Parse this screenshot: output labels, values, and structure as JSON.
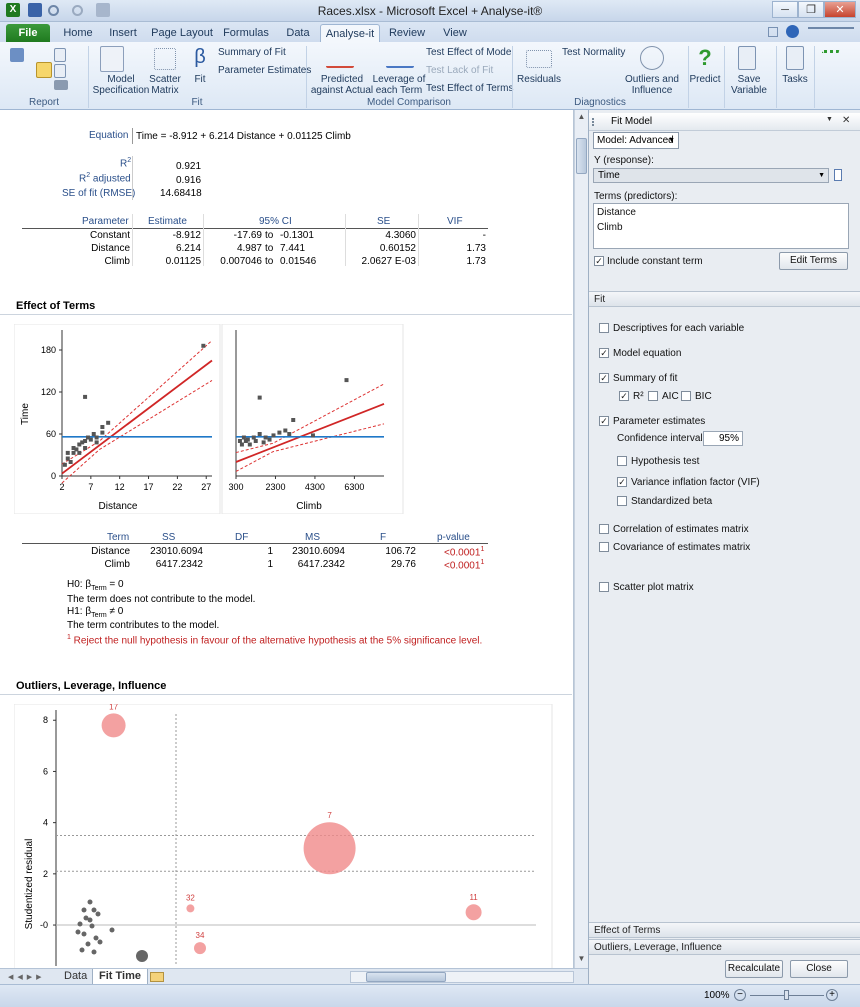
{
  "window": {
    "title": "Races.xlsx - Microsoft Excel + Analyse-it®",
    "minimize": "─",
    "restore": "❐",
    "close": "✕"
  },
  "tabs": [
    "File",
    "Home",
    "Insert",
    "Page Layout",
    "Formulas",
    "Data",
    "Analyse-it",
    "Review",
    "View"
  ],
  "ribbon": {
    "groups": {
      "report": "Report",
      "fit": "Fit",
      "model_comparison": "Model Comparison",
      "diagnostics": "Diagnostics"
    },
    "model_specification": [
      "Model",
      "Specification"
    ],
    "scatter_matrix": [
      "Scatter",
      "Matrix"
    ],
    "fit": "Fit",
    "summary_of_fit": "Summary of Fit",
    "parameter_estimates": "Parameter Estimates",
    "predicted_against_actual": [
      "Predicted",
      "against Actual"
    ],
    "leverage_of_each_term": [
      "Leverage of",
      "each Term"
    ],
    "test_effect_of_model": "Test Effect of Model",
    "test_lack_of_fit": "Test Lack of Fit",
    "test_effect_of_terms": "Test Effect of Terms",
    "residuals": "Residuals",
    "test_normality": "Test Normality",
    "outliers_and_influence": [
      "Outliers and",
      "Influence"
    ],
    "predict": "Predict",
    "save_variable": [
      "Save",
      "Variable"
    ],
    "tasks": "Tasks",
    "beta_glyph": "β",
    "predict_glyph": "?"
  },
  "report": {
    "equation_label": "Equation",
    "equation": "Time = -8.912 + 6.214 Distance + 0.01125 Climb",
    "r2_label": "R",
    "r2_sup": "2",
    "r2": "0.921",
    "r2adj_label_pre": "R",
    "r2adj_label_sup": "2",
    "r2adj_label_post": " adjusted",
    "r2adj": "0.916",
    "se_label": "SE of fit (RMSE)",
    "se": "14.68418",
    "param_headers": [
      "Parameter",
      "Estimate",
      "95% CI",
      "SE",
      "VIF"
    ],
    "params": [
      {
        "name": "Constant",
        "estimate": "-8.912",
        "ci_lo": "-17.69",
        "ci_to": "to",
        "ci_hi": "-0.1301",
        "se": "4.3060",
        "vif": "-"
      },
      {
        "name": "Distance",
        "estimate": "6.214",
        "ci_lo": "4.987",
        "ci_to": "to",
        "ci_hi": "7.441",
        "se": "0.60152",
        "vif": "1.73"
      },
      {
        "name": "Climb",
        "estimate": "0.01125",
        "ci_lo": "0.007046",
        "ci_to": "to",
        "ci_hi": "0.01546",
        "se": "2.0627 E-03",
        "vif": "1.73"
      }
    ],
    "effect_title": "Effect of Terms",
    "term_headers": [
      "Term",
      "SS",
      "DF",
      "MS",
      "F",
      "p-value"
    ],
    "terms": [
      {
        "name": "Distance",
        "ss": "23010.6094",
        "df": "1",
        "ms": "23010.6094",
        "f": "106.72",
        "p": "<0.0001",
        "sup": "1"
      },
      {
        "name": "Climb",
        "ss": "6417.2342",
        "df": "1",
        "ms": "6417.2342",
        "f": "29.76",
        "p": "<0.0001",
        "sup": "1"
      }
    ],
    "h0_pre": "H0: β",
    "h0_sub": "Term",
    "h0_post": " = 0",
    "h0_text": "The term does not contribute to the model.",
    "h1_pre": "H1: β",
    "h1_sub": "Term",
    "h1_post": " ≠ 0",
    "h1_text": "The term contributes to the model.",
    "footnote_sup": "1",
    "footnote": " Reject the null hypothesis in favour of the alternative hypothesis at the 5% significance level.",
    "outliers_title": "Outliers, Leverage, Influence"
  },
  "chart_data": [
    {
      "type": "scatter",
      "xlabel": "Distance",
      "ylabel": "Time",
      "xticks": [
        "2",
        "7",
        "12",
        "17",
        "22",
        "27"
      ],
      "yticks": [
        "0",
        "60",
        "120",
        "180"
      ],
      "xlim": [
        2,
        28
      ],
      "ylim": [
        0,
        200
      ],
      "points": [
        [
          2.5,
          16
        ],
        [
          3,
          25
        ],
        [
          3,
          33
        ],
        [
          3.5,
          20
        ],
        [
          4,
          33
        ],
        [
          4,
          40
        ],
        [
          4.5,
          38
        ],
        [
          5,
          33
        ],
        [
          5,
          45
        ],
        [
          5.5,
          48
        ],
        [
          6,
          50
        ],
        [
          6,
          40
        ],
        [
          6.5,
          55
        ],
        [
          7,
          52
        ],
        [
          7.5,
          60
        ],
        [
          8,
          48
        ],
        [
          8,
          55
        ],
        [
          9,
          62
        ],
        [
          9,
          70
        ],
        [
          10,
          76
        ],
        [
          6,
          113
        ],
        [
          26.5,
          186
        ]
      ],
      "fit_line": [
        [
          2,
          3.5
        ],
        [
          28,
          165
        ]
      ],
      "mean_line": 56
    },
    {
      "type": "scatter",
      "xlabel": "Climb",
      "xticks": [
        "300",
        "2300",
        "4300",
        "6300"
      ],
      "xlim": [
        300,
        7800
      ],
      "ylim": [
        0,
        200
      ],
      "points": [
        [
          500,
          50
        ],
        [
          600,
          45
        ],
        [
          700,
          55
        ],
        [
          800,
          50
        ],
        [
          900,
          52
        ],
        [
          1000,
          45
        ],
        [
          1200,
          55
        ],
        [
          1300,
          50
        ],
        [
          1500,
          60
        ],
        [
          1700,
          48
        ],
        [
          1800,
          55
        ],
        [
          2000,
          52
        ],
        [
          2200,
          58
        ],
        [
          2500,
          62
        ],
        [
          2800,
          65
        ],
        [
          3000,
          60
        ],
        [
          3200,
          80
        ],
        [
          4200,
          58
        ],
        [
          5900,
          137
        ],
        [
          1500,
          112
        ]
      ],
      "fit_line": [
        [
          300,
          20
        ],
        [
          7800,
          103
        ]
      ],
      "mean_line": 56
    },
    {
      "type": "bubble",
      "ylabel": "Studentized residual",
      "yticks": [
        "-0",
        "2",
        "4",
        "6",
        "8"
      ],
      "ylim": [
        -1.6,
        8.4
      ],
      "labels": [
        "17",
        "32",
        "34",
        "7",
        "11"
      ],
      "points": [
        {
          "label": "17",
          "x": 0.12,
          "y": 7.8,
          "r": 12,
          "highlight": true
        },
        {
          "label": "32",
          "x": 0.28,
          "y": 0.65,
          "r": 4,
          "highlight": true
        },
        {
          "label": "34",
          "x": 0.3,
          "y": -0.9,
          "r": 6,
          "highlight": true
        },
        {
          "label": "7",
          "x": 0.57,
          "y": 3,
          "r": 26,
          "highlight": true
        },
        {
          "label": "11",
          "x": 0.87,
          "y": 0.5,
          "r": 8,
          "highlight": true
        }
      ],
      "hlines": [
        3.5,
        2.1,
        0
      ]
    }
  ],
  "sheet_tabs": [
    "Data",
    "Fit Time"
  ],
  "status": {
    "zoom": "100%",
    "zoom_minus": "−",
    "zoom_plus": "+"
  },
  "panel": {
    "title": "Fit Model",
    "close_glyph": "✕",
    "collapse_glyph": "▼",
    "model_select": "Model: Advanced",
    "y_label": "Y (response):",
    "y_value": "Time",
    "terms_label": "Terms (predictors):",
    "terms": [
      "Distance",
      "Climb"
    ],
    "include_constant": "Include constant term",
    "edit_terms": "Edit Terms",
    "fit_section": "Fit",
    "options": {
      "descriptives": "Descriptives for each variable",
      "model_equation": "Model equation",
      "summary_of_fit": "Summary of fit",
      "r2": "R²",
      "aic": "AIC",
      "bic": "BIC",
      "parameter_estimates": "Parameter estimates",
      "confidence_interval": "Confidence interval:",
      "ci_value": "95%",
      "hypothesis_test": "Hypothesis test",
      "vif": "Variance inflation factor (VIF)",
      "standardized_beta": "Standardized beta",
      "correlation": "Correlation of estimates matrix",
      "covariance": "Covariance of estimates matrix",
      "scatter_plot_matrix": "Scatter plot matrix"
    },
    "checked_glyph": "✓",
    "bottom_sections": [
      "Effect of Terms",
      "Outliers, Leverage, Influence"
    ],
    "recalculate": "Recalculate",
    "close": "Close"
  }
}
